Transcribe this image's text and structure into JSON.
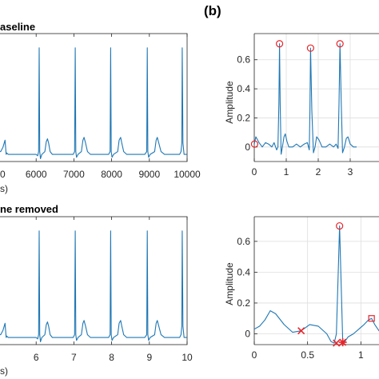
{
  "panel_label": "(b)",
  "colors": {
    "line": "#1f77b4",
    "marker": "#e8262a",
    "axis": "#262626",
    "grid": "#dedede",
    "background": "#ffffff"
  },
  "chart_data": [
    {
      "type": "line",
      "title_fragment": "aseline",
      "xlabel_fragment": "s)",
      "ylabel": "",
      "xticks": [
        "0",
        "6000",
        "7000",
        "8000",
        "9000",
        "10000"
      ],
      "xlim": [
        5000,
        10000
      ],
      "grid": false,
      "x": [
        5000,
        5060,
        5120,
        5175,
        5190,
        5205,
        5220,
        5260,
        5380,
        5500,
        5620,
        5740,
        5860,
        6000,
        6040,
        6065,
        6080,
        6095,
        6115,
        6150,
        6230,
        6270,
        6300,
        6330,
        6370,
        6430,
        6500,
        6580,
        6660,
        6740,
        6820,
        6900,
        6980,
        7020,
        7035,
        7050,
        7070,
        7110,
        7200,
        7240,
        7270,
        7310,
        7360,
        7440,
        7520,
        7600,
        7680,
        7760,
        7840,
        7920,
        7960,
        7975,
        7990,
        8010,
        8050,
        8160,
        8200,
        8240,
        8270,
        8320,
        8400,
        8480,
        8560,
        8640,
        8720,
        8800,
        8880,
        8930,
        8945,
        8960,
        8980,
        9020,
        9140,
        9180,
        9210,
        9250,
        9310,
        9400,
        9480,
        9560,
        9640,
        9720,
        9800,
        9840,
        9860,
        9870,
        9890,
        9920,
        10000
      ],
      "y": [
        0.02,
        0.02,
        0.05,
        0.1,
        0.05,
        0.0,
        0.01,
        0.0,
        0.0,
        0.0,
        0.0,
        0.0,
        0.0,
        0.0,
        -0.01,
        0.02,
        0.75,
        0.02,
        -0.03,
        0.0,
        0.02,
        0.09,
        0.11,
        0.08,
        0.02,
        0.0,
        0.0,
        0.0,
        0.0,
        0.0,
        0.0,
        0.0,
        0.0,
        0.02,
        0.75,
        0.02,
        -0.02,
        0.0,
        0.02,
        0.1,
        0.12,
        0.08,
        0.02,
        0.0,
        0.0,
        0.0,
        0.0,
        0.0,
        0.0,
        0.0,
        0.02,
        0.75,
        0.02,
        -0.02,
        0.0,
        0.02,
        0.1,
        0.12,
        0.08,
        0.02,
        0.0,
        0.0,
        0.0,
        0.0,
        0.0,
        0.0,
        0.0,
        0.02,
        0.75,
        0.02,
        -0.02,
        0.0,
        0.02,
        0.1,
        0.12,
        0.08,
        0.02,
        0.0,
        0.0,
        0.0,
        0.0,
        0.0,
        0.0,
        0.02,
        0.08,
        0.75,
        0.08,
        0.0,
        0.0
      ],
      "ylim": [
        -0.05,
        0.85
      ]
    },
    {
      "type": "line",
      "ylabel": "Amplitude",
      "xticks": [
        "0",
        "1",
        "2",
        "3"
      ],
      "yticks": [
        "0",
        "0.2",
        "0.4",
        "0.6"
      ],
      "xlim": [
        0,
        4
      ],
      "ylim": [
        -0.1,
        0.78
      ],
      "grid": true,
      "x": [
        0,
        0.05,
        0.15,
        0.25,
        0.35,
        0.45,
        0.55,
        0.62,
        0.7,
        0.74,
        0.77,
        0.79,
        0.81,
        0.84,
        0.88,
        0.93,
        0.97,
        1.02,
        1.08,
        1.2,
        1.32,
        1.44,
        1.56,
        1.66,
        1.72,
        1.74,
        1.76,
        1.8,
        1.85,
        1.9,
        1.95,
        2.02,
        2.12,
        2.24,
        2.36,
        2.48,
        2.56,
        2.62,
        2.65,
        2.68,
        2.72,
        2.76,
        2.82,
        2.88,
        2.93,
        3.0,
        3.1,
        3.2
      ],
      "y": [
        0.02,
        0.07,
        0.03,
        0.0,
        0.03,
        0.02,
        0.0,
        0.03,
        -0.02,
        0.0,
        0.3,
        0.71,
        0.3,
        -0.05,
        0.0,
        0.07,
        0.09,
        0.04,
        0.0,
        0.0,
        0.02,
        0.0,
        0.02,
        0.03,
        -0.02,
        0.25,
        0.68,
        0.25,
        -0.04,
        0.0,
        0.07,
        0.05,
        0.0,
        0.0,
        0.02,
        0.0,
        0.02,
        -0.01,
        0.3,
        0.71,
        0.3,
        -0.04,
        0.0,
        0.06,
        0.07,
        0.02,
        0.0,
        0.0
      ],
      "markers": [
        {
          "shape": "circle",
          "x": 0.01,
          "y": 0.02
        },
        {
          "shape": "circle",
          "x": 0.79,
          "y": 0.71
        },
        {
          "shape": "circle",
          "x": 1.76,
          "y": 0.68
        },
        {
          "shape": "circle",
          "x": 2.68,
          "y": 0.71
        }
      ]
    },
    {
      "type": "line",
      "title_fragment": "ne removed",
      "xlabel_fragment": "s)",
      "ylabel": "",
      "xticks": [
        "6",
        "7",
        "8",
        "9",
        "10"
      ],
      "xlim": [
        5,
        10
      ],
      "grid": false,
      "x": [
        5.0,
        5.06,
        5.12,
        5.175,
        5.19,
        5.205,
        5.22,
        5.26,
        5.38,
        5.5,
        5.62,
        5.74,
        5.86,
        6.0,
        6.04,
        6.065,
        6.08,
        6.095,
        6.115,
        6.15,
        6.23,
        6.27,
        6.3,
        6.33,
        6.37,
        6.43,
        6.5,
        6.58,
        6.66,
        6.74,
        6.82,
        6.9,
        6.98,
        7.02,
        7.035,
        7.05,
        7.07,
        7.11,
        7.2,
        7.24,
        7.27,
        7.31,
        7.36,
        7.44,
        7.52,
        7.6,
        7.68,
        7.76,
        7.84,
        7.92,
        7.96,
        7.975,
        7.99,
        8.01,
        8.05,
        8.16,
        8.2,
        8.24,
        8.27,
        8.32,
        8.4,
        8.48,
        8.56,
        8.64,
        8.72,
        8.8,
        8.88,
        8.93,
        8.945,
        8.96,
        8.98,
        9.02,
        9.14,
        9.18,
        9.21,
        9.25,
        9.31,
        9.4,
        9.48,
        9.56,
        9.64,
        9.72,
        9.8,
        9.84,
        9.86,
        9.87,
        9.89,
        9.92,
        10.0
      ],
      "y": [
        0.02,
        0.02,
        0.05,
        0.1,
        0.05,
        0.0,
        0.01,
        0.0,
        0.0,
        0.0,
        0.0,
        0.0,
        0.0,
        0.0,
        -0.01,
        0.02,
        0.75,
        0.02,
        -0.03,
        0.0,
        0.02,
        0.09,
        0.11,
        0.08,
        0.02,
        0.0,
        0.0,
        0.0,
        0.0,
        0.0,
        0.0,
        0.0,
        0.0,
        0.02,
        0.75,
        0.02,
        -0.02,
        0.0,
        0.02,
        0.1,
        0.12,
        0.08,
        0.02,
        0.0,
        0.0,
        0.0,
        0.0,
        0.0,
        0.0,
        0.0,
        0.02,
        0.75,
        0.02,
        -0.02,
        0.0,
        0.02,
        0.1,
        0.12,
        0.08,
        0.02,
        0.0,
        0.0,
        0.0,
        0.0,
        0.0,
        0.0,
        0.0,
        0.02,
        0.75,
        0.02,
        -0.02,
        0.0,
        0.02,
        0.1,
        0.12,
        0.08,
        0.02,
        0.0,
        0.0,
        0.0,
        0.0,
        0.0,
        0.0,
        0.02,
        0.08,
        0.75,
        0.08,
        0.0,
        0.0
      ],
      "ylim": [
        -0.05,
        0.85
      ]
    },
    {
      "type": "line",
      "ylabel": "Amplitude",
      "xticks": [
        "0",
        "0.5",
        "1"
      ],
      "yticks": [
        "0",
        "0.2",
        "0.4",
        "0.6"
      ],
      "xlim": [
        0,
        1.2
      ],
      "ylim": [
        -0.07,
        0.76
      ],
      "grid": true,
      "x": [
        0,
        0.05,
        0.1,
        0.15,
        0.2,
        0.28,
        0.36,
        0.44,
        0.52,
        0.6,
        0.68,
        0.72,
        0.75,
        0.77,
        0.79,
        0.8,
        0.81,
        0.83,
        0.85,
        0.88,
        0.93,
        0.98,
        1.03,
        1.07,
        1.1,
        1.13,
        1.17,
        1.2
      ],
      "y": [
        0.03,
        0.05,
        0.09,
        0.15,
        0.13,
        0.06,
        0.01,
        0.02,
        0.06,
        0.05,
        0.0,
        -0.05,
        -0.06,
        0.0,
        0.45,
        0.7,
        0.45,
        -0.06,
        -0.05,
        -0.02,
        0.0,
        0.03,
        0.06,
        0.09,
        0.1,
        0.06,
        0.02,
        0.0
      ],
      "markers": [
        {
          "shape": "x",
          "x": 0.44,
          "y": 0.02
        },
        {
          "shape": "x",
          "x": 0.77,
          "y": -0.06
        },
        {
          "shape": "asterisk",
          "x": 0.83,
          "y": -0.055
        },
        {
          "shape": "circle",
          "x": 0.8,
          "y": 0.7
        },
        {
          "shape": "square",
          "x": 1.1,
          "y": 0.1
        }
      ]
    }
  ]
}
